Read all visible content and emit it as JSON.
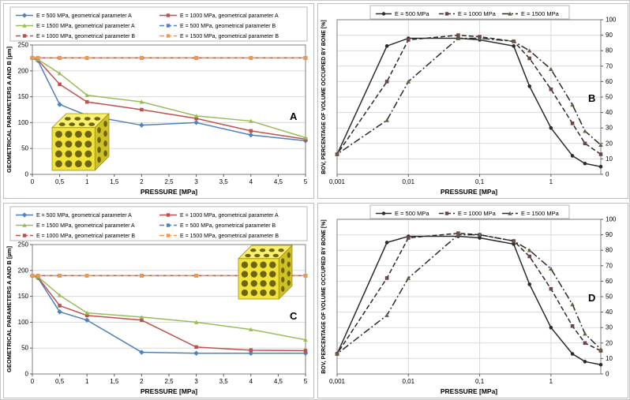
{
  "figure": {
    "background": "#ffffff",
    "border_color": "#c8c8c8",
    "panel_letters": [
      "A",
      "B",
      "C",
      "D"
    ]
  },
  "colors": {
    "blue": "#4f81bd",
    "red": "#c0504d",
    "green": "#9bbb59",
    "orange": "#f79646",
    "dark_line": "#2b2b2b",
    "marker_square_dark": "#6e4545",
    "marker_triangle_dark": "#6a5c43",
    "grid": "#d9d9d9",
    "cube_yellow": "#f2e33b"
  },
  "chart_data": [
    {
      "id": "A",
      "panel_label": "A",
      "type": "line",
      "xscale": "linear",
      "xlabel": "PRESSURE [MPa]",
      "ylabel": "GEOMETRICAL PARAMETERS A AND B [µm]",
      "xlim": [
        0,
        5
      ],
      "ylim": [
        0,
        250
      ],
      "xticks": [
        0,
        0.5,
        1,
        1.5,
        2,
        2.5,
        3,
        3.5,
        4,
        4.5,
        5
      ],
      "xtick_labels": [
        "0",
        "0,5",
        "1",
        "1,5",
        "2",
        "2,5",
        "3",
        "3,5",
        "4",
        "4,5",
        "5"
      ],
      "yticks": [
        0,
        50,
        100,
        150,
        200,
        250
      ],
      "ytick_labels": [
        "0",
        "50",
        "100",
        "150",
        "200",
        "250"
      ],
      "ytick_side": "left",
      "grid_x": false,
      "legend_position": "top",
      "x": [
        0,
        0.1,
        0.5,
        1,
        2,
        3,
        4,
        5
      ],
      "series": [
        {
          "name": "E = 500 MPa, geometrical parameter A",
          "color": "#4f81bd",
          "dash": "solid",
          "marker": "diamond",
          "values": [
            225,
            220,
            135,
            114,
            95,
            100,
            76,
            65
          ]
        },
        {
          "name": "E = 1000 MPa, geometrical parameter A",
          "color": "#c0504d",
          "dash": "solid",
          "marker": "square",
          "values": [
            225,
            221,
            174,
            140,
            125,
            108,
            84,
            68
          ]
        },
        {
          "name": "E = 1500 MPa, geometrical parameter A",
          "color": "#9bbb59",
          "dash": "solid",
          "marker": "triangle",
          "values": [
            225,
            222,
            195,
            153,
            140,
            113,
            103,
            71
          ]
        },
        {
          "name": "E = 500 MPa, geometrical parameter B",
          "color": "#4f81bd",
          "dash": "dash",
          "marker": "square",
          "values": [
            225,
            225,
            225,
            225,
            225,
            225,
            225,
            225
          ]
        },
        {
          "name": "E = 1000 MPa, geometrical parameter B",
          "color": "#c0504d",
          "dash": "dash",
          "marker": "square",
          "values": [
            225,
            225,
            225,
            225,
            225,
            225,
            225,
            225
          ]
        },
        {
          "name": "E = 1500 MPa, geometrical parameter B",
          "color": "#f79646",
          "dash": "dash",
          "marker": "square",
          "values": [
            225,
            225,
            225,
            225,
            225,
            225,
            225,
            225
          ]
        }
      ],
      "cube_icon": true,
      "cube_position": "bottom-left"
    },
    {
      "id": "B",
      "panel_label": "B",
      "type": "line",
      "xscale": "log",
      "xlabel": "PRESSURE [MPa]",
      "ylabel": "BOV, PERCENTAGE OF VOLUME OCCUPIED BY BONE [%]",
      "xlim": [
        0.001,
        5
      ],
      "ylim": [
        0,
        100
      ],
      "xticks": [
        0.001,
        0.01,
        0.1,
        1
      ],
      "xtick_labels": [
        "0,001",
        "0,01",
        "0,1",
        "1"
      ],
      "yticks": [
        0,
        10,
        20,
        30,
        40,
        50,
        60,
        70,
        80,
        90,
        100
      ],
      "ytick_labels": [
        "0",
        "10",
        "20",
        "30",
        "40",
        "50",
        "60",
        "70",
        "80",
        "90",
        "100"
      ],
      "ytick_side": "right",
      "grid_x": true,
      "legend_position": "top",
      "x": [
        0.001,
        0.005,
        0.01,
        0.05,
        0.1,
        0.3,
        0.5,
        1,
        2,
        3,
        5
      ],
      "series": [
        {
          "name": "E = 500 MPa",
          "color": "#2b2b2b",
          "mcolor": "#2b2b2b",
          "dash": "solid",
          "marker": "circle",
          "values": [
            13,
            83,
            88,
            88,
            87,
            83,
            57,
            30,
            12,
            7,
            5
          ]
        },
        {
          "name": "E = 1000 MPa",
          "color": "#2b2b2b",
          "mcolor": "#6e4545",
          "dash": "dash",
          "marker": "square",
          "values": [
            13,
            60,
            87,
            90,
            89,
            86,
            75,
            55,
            33,
            20,
            13
          ]
        },
        {
          "name": "E = 1500 MPa",
          "color": "#2b2b2b",
          "mcolor": "#6a5c43",
          "dash": "dashdot",
          "marker": "triangle",
          "values": [
            13,
            35,
            60,
            88,
            88,
            86,
            80,
            68,
            45,
            28,
            19
          ]
        }
      ],
      "cube_icon": false
    },
    {
      "id": "C",
      "panel_label": "C",
      "type": "line",
      "xscale": "linear",
      "xlabel": "PRESSURE [MPa]",
      "ylabel": "GEOMETRICAL PARAMETERS A AND B [µm]",
      "xlim": [
        0,
        5
      ],
      "ylim": [
        0,
        250
      ],
      "xticks": [
        0,
        0.5,
        1,
        1.5,
        2,
        2.5,
        3,
        3.5,
        4,
        4.5,
        5
      ],
      "xtick_labels": [
        "0",
        "0,5",
        "1",
        "1,5",
        "2",
        "2,5",
        "3",
        "3,5",
        "4",
        "4,5",
        "5"
      ],
      "yticks": [
        0,
        50,
        100,
        150,
        200,
        250
      ],
      "ytick_labels": [
        "0",
        "50",
        "100",
        "150",
        "200",
        "250"
      ],
      "ytick_side": "left",
      "grid_x": false,
      "legend_position": "top",
      "x": [
        0,
        0.1,
        0.5,
        1,
        2,
        3,
        4,
        5
      ],
      "series": [
        {
          "name": "E = 500 MPa, geometrical parameter A",
          "color": "#4f81bd",
          "dash": "solid",
          "marker": "diamond",
          "values": [
            190,
            186,
            120,
            104,
            42,
            40,
            40,
            40
          ]
        },
        {
          "name": "E = 1000 MPa, geometrical parameter A",
          "color": "#c0504d",
          "dash": "solid",
          "marker": "square",
          "values": [
            190,
            187,
            132,
            113,
            104,
            52,
            46,
            45
          ]
        },
        {
          "name": "E = 1500 MPa, geometrical parameter A",
          "color": "#9bbb59",
          "dash": "solid",
          "marker": "triangle",
          "values": [
            190,
            188,
            152,
            118,
            110,
            100,
            86,
            66
          ]
        },
        {
          "name": "E = 500 MPa, geometrical parameter B",
          "color": "#4f81bd",
          "dash": "dash",
          "marker": "square",
          "values": [
            190,
            190,
            190,
            190,
            190,
            190,
            190,
            190
          ]
        },
        {
          "name": "E = 1000 MPa, geometrical parameter B",
          "color": "#c0504d",
          "dash": "dash",
          "marker": "square",
          "values": [
            190,
            190,
            190,
            190,
            190,
            190,
            190,
            190
          ]
        },
        {
          "name": "E = 1500 MPa, geometrical parameter B",
          "color": "#f79646",
          "dash": "dash",
          "marker": "square",
          "values": [
            190,
            190,
            190,
            190,
            190,
            190,
            190,
            190
          ]
        }
      ],
      "cube_icon": true,
      "cube_position": "top-right"
    },
    {
      "id": "D",
      "panel_label": "D",
      "type": "line",
      "xscale": "log",
      "xlabel": "PRESSURE [MPa]",
      "ylabel": "BOV, PERCENTAGE OF VOLUME OCCUPIED BY BONE [%]",
      "xlim": [
        0.001,
        5
      ],
      "ylim": [
        0,
        100
      ],
      "xticks": [
        0.001,
        0.01,
        0.1,
        1
      ],
      "xtick_labels": [
        "0,001",
        "0,01",
        "0,1",
        "1"
      ],
      "yticks": [
        0,
        10,
        20,
        30,
        40,
        50,
        60,
        70,
        80,
        90,
        100
      ],
      "ytick_labels": [
        "0",
        "10",
        "20",
        "30",
        "40",
        "50",
        "60",
        "70",
        "80",
        "90",
        "100"
      ],
      "ytick_side": "right",
      "grid_x": true,
      "legend_position": "top",
      "x": [
        0.001,
        0.005,
        0.01,
        0.05,
        0.1,
        0.3,
        0.5,
        1,
        2,
        3,
        5
      ],
      "series": [
        {
          "name": "E = 500 MPa",
          "color": "#2b2b2b",
          "mcolor": "#2b2b2b",
          "dash": "solid",
          "marker": "circle",
          "values": [
            13,
            85,
            89,
            89,
            88,
            84,
            58,
            30,
            13,
            8,
            6
          ]
        },
        {
          "name": "E = 1000 MPa",
          "color": "#2b2b2b",
          "mcolor": "#6e4545",
          "dash": "dash",
          "marker": "square",
          "values": [
            13,
            62,
            88,
            91,
            90,
            86,
            76,
            55,
            31,
            20,
            15
          ]
        },
        {
          "name": "E = 1500 MPa",
          "color": "#2b2b2b",
          "mcolor": "#6a5c43",
          "dash": "dashdot",
          "marker": "triangle",
          "values": [
            13,
            38,
            62,
            90,
            90,
            86,
            80,
            68,
            45,
            26,
            16
          ]
        }
      ],
      "cube_icon": false
    }
  ]
}
